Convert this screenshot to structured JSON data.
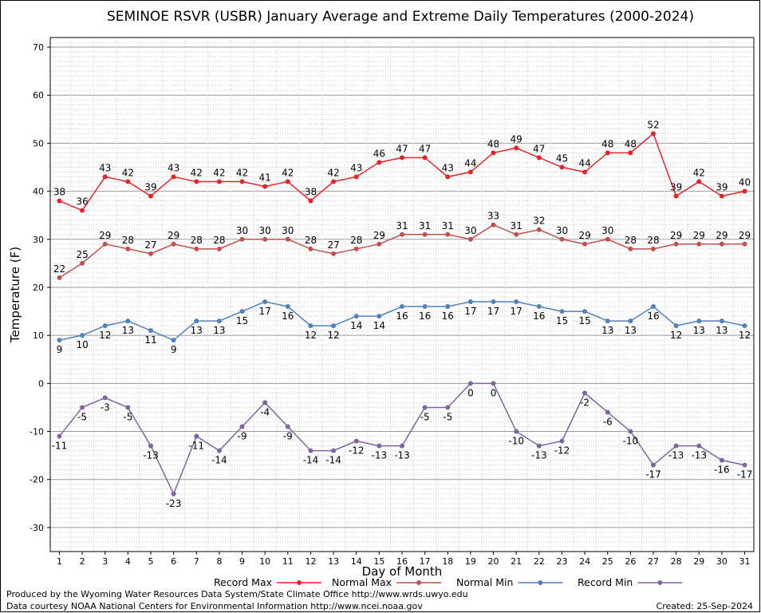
{
  "chart_data": {
    "type": "line",
    "title": "SEMINOE RSVR (USBR) January Average and Extreme Daily Temperatures (2000-2024)",
    "xlabel": "Day of Month",
    "ylabel": "Temperature (F)",
    "ylim": [
      -35,
      72
    ],
    "yticks": [
      -30,
      -20,
      -10,
      0,
      10,
      20,
      30,
      40,
      50,
      60,
      70
    ],
    "x": [
      1,
      2,
      3,
      4,
      5,
      6,
      7,
      8,
      9,
      10,
      11,
      12,
      13,
      14,
      15,
      16,
      17,
      18,
      19,
      20,
      21,
      22,
      23,
      24,
      25,
      26,
      27,
      28,
      29,
      30,
      31
    ],
    "xlim": [
      0.6,
      31.4
    ],
    "grid": true,
    "legend_position": "bottom",
    "series": [
      {
        "name": "Record Max",
        "color": "#e8212a",
        "label_pos": "above",
        "values": [
          38,
          36,
          43,
          42,
          39,
          43,
          42,
          42,
          42,
          41,
          42,
          38,
          42,
          43,
          46,
          47,
          47,
          43,
          44,
          48,
          49,
          47,
          45,
          44,
          48,
          48,
          52,
          39,
          42,
          39,
          40
        ]
      },
      {
        "name": "Normal Max",
        "color": "#c0504d",
        "label_pos": "above",
        "values": [
          22,
          25,
          29,
          28,
          27,
          29,
          28,
          28,
          30,
          30,
          30,
          28,
          27,
          28,
          29,
          31,
          31,
          31,
          30,
          33,
          31,
          32,
          30,
          29,
          30,
          28,
          28,
          29,
          29,
          29,
          29
        ]
      },
      {
        "name": "Normal Min",
        "color": "#4f81bd",
        "label_pos": "below",
        "values": [
          9,
          10,
          12,
          13,
          11,
          9,
          13,
          13,
          15,
          17,
          16,
          12,
          12,
          14,
          14,
          16,
          16,
          16,
          17,
          17,
          17,
          16,
          15,
          15,
          13,
          13,
          16,
          12,
          13,
          13,
          12
        ]
      },
      {
        "name": "Record Min",
        "color": "#8064a2",
        "label_pos": "below",
        "values": [
          -11,
          -5,
          -3,
          -5,
          -13,
          -23,
          -11,
          -14,
          -9,
          -4,
          -9,
          -14,
          -14,
          -12,
          -13,
          -13,
          -5,
          -5,
          0,
          0,
          -10,
          -13,
          -12,
          -2,
          -6,
          -10,
          -17,
          -13,
          -13,
          -16,
          -17
        ]
      }
    ]
  },
  "footer": {
    "produced_by": "Produced by the Wyoming Water Resources Data System/State Climate Office http://www.wrds.uwyo.edu",
    "courtesy": "Data courtesy NOAA National Centers for Environmental Information http://www.ncei.noaa.gov",
    "created": "Created:  25-Sep-2024"
  }
}
